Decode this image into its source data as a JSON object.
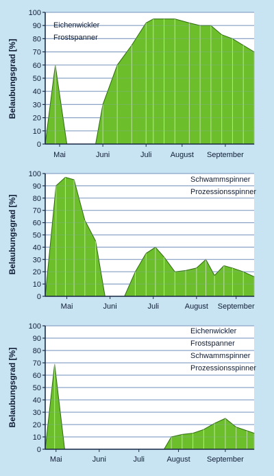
{
  "colors": {
    "background": "#c8e4f3",
    "plot_bg": "#ffffff",
    "fill": "#6cbf2a",
    "fill_stroke": "#2f6a12",
    "grid": "#8aa4c7",
    "axis": "#1a2a44",
    "text": "#0f1c34"
  },
  "chart_data": [
    {
      "type": "area",
      "ylabel": "Belaubungsgrad [%]",
      "ylim": [
        0,
        100
      ],
      "yticks": [
        0,
        10,
        20,
        30,
        40,
        50,
        60,
        70,
        80,
        90,
        100
      ],
      "xlim": [
        0,
        29
      ],
      "month_labels": [
        {
          "label": "Mai",
          "x": 2
        },
        {
          "label": "Juni",
          "x": 8
        },
        {
          "label": "Juli",
          "x": 14
        },
        {
          "label": "August",
          "x": 19
        },
        {
          "label": "September",
          "x": 25
        }
      ],
      "legend": [
        "Eichenwickler",
        "Frostspanner"
      ],
      "legend_position": "top-left",
      "segments": [
        {
          "x": [
            0,
            1.4,
            3
          ],
          "y": [
            0,
            60,
            0
          ]
        },
        {
          "x": [
            7,
            8,
            10,
            12,
            14,
            15,
            16.5,
            18,
            20,
            21.5,
            23,
            24.5,
            26,
            27.5,
            29
          ],
          "y": [
            0,
            30,
            60,
            75,
            92,
            95,
            95,
            95,
            92,
            90,
            90,
            83,
            80,
            75,
            70
          ]
        }
      ]
    },
    {
      "type": "area",
      "ylabel": "Belaubungsgrad [%]",
      "ylim": [
        0,
        100
      ],
      "yticks": [
        0,
        10,
        20,
        30,
        40,
        50,
        60,
        70,
        80,
        90,
        100
      ],
      "xlim": [
        0,
        29
      ],
      "month_labels": [
        {
          "label": "Mai",
          "x": 3
        },
        {
          "label": "Juni",
          "x": 9
        },
        {
          "label": "Juli",
          "x": 15
        },
        {
          "label": "August",
          "x": 21
        },
        {
          "label": "September",
          "x": 26.5
        }
      ],
      "legend": [
        "Schwammspinner",
        "Prozessionsspinner"
      ],
      "legend_position": "top-right",
      "segments": [
        {
          "x": [
            0,
            1.5,
            2.8,
            4,
            5.5,
            7,
            8.3
          ],
          "y": [
            0,
            90,
            97,
            95,
            62,
            45,
            0
          ]
        },
        {
          "x": [
            11,
            12.5,
            14,
            15.3,
            16.5,
            18,
            19.5,
            21,
            22.3,
            23.5,
            24.8,
            26,
            27.5,
            29
          ],
          "y": [
            0,
            20,
            35,
            40,
            32,
            20,
            21,
            23,
            30,
            17,
            25,
            23,
            20,
            16
          ]
        }
      ]
    },
    {
      "type": "area",
      "ylabel": "Belaubungsgrad [%]",
      "ylim": [
        0,
        100
      ],
      "yticks": [
        0,
        10,
        20,
        30,
        40,
        50,
        60,
        70,
        80,
        90,
        100
      ],
      "xlim": [
        0,
        29
      ],
      "month_labels": [
        {
          "label": "Mai",
          "x": 1.5
        },
        {
          "label": "Juni",
          "x": 7.5
        },
        {
          "label": "Juli",
          "x": 13
        },
        {
          "label": "August",
          "x": 18.5
        },
        {
          "label": "September",
          "x": 25
        }
      ],
      "legend": [
        "Eichenwickler",
        "Frostspanner",
        "Schwammspinner",
        "Prozessionsspinner"
      ],
      "legend_position": "top-right",
      "segments": [
        {
          "x": [
            0,
            1.3,
            2.7
          ],
          "y": [
            0,
            69,
            0
          ]
        },
        {
          "x": [
            16.5,
            17.5,
            19,
            20.5,
            22,
            23.5,
            25,
            26.5,
            28,
            29
          ],
          "y": [
            0,
            10,
            12,
            13,
            16,
            21,
            25,
            18,
            15,
            13
          ]
        }
      ]
    }
  ]
}
